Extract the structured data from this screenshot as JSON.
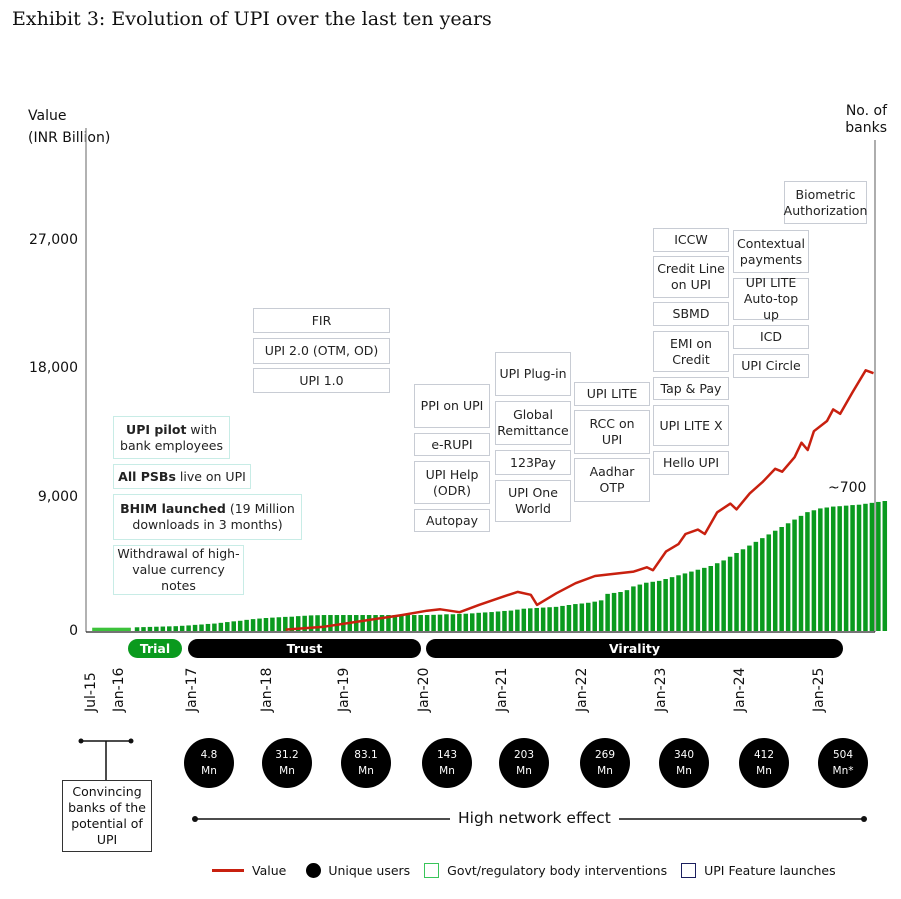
{
  "title": "Exhibit 3: Evolution of UPI over the last ten years",
  "colors": {
    "value_line": "#c8200f",
    "bank_bars": "#0a9a1e",
    "bank_bars_trial": "#3cc23a",
    "govt_box_border": "#39c55a",
    "feature_box_border": "#1b1f5e",
    "phase_trial": "#0a9a1e",
    "phase_dark": "#000000"
  },
  "chart_data": {
    "type": "bar+line",
    "title": "Exhibit 3: Evolution of UPI over the last ten years",
    "ylabel": "Value (INR Billion)",
    "y2label": "No. of banks",
    "ylim": [
      0,
      30000
    ],
    "yticks": [
      "0",
      "9,000",
      "18,000",
      "27,000"
    ],
    "ytick_values": [
      0,
      9000,
      18000,
      27000
    ],
    "xticks": [
      "Jul-15",
      "Jan-16",
      "Jan-17",
      "Jan-18",
      "Jan-19",
      "Jan-20",
      "Jan-21",
      "Jan-22",
      "Jan-23",
      "Jan-24",
      "Jan-25"
    ],
    "xtick_years": [
      2015.5,
      2016.0,
      2017.0,
      2018.0,
      2019.0,
      2020.0,
      2021.0,
      2022.0,
      2023.0,
      2024.0,
      2025.0
    ],
    "x_range_years": [
      2015.42,
      2025.62
    ],
    "grid": false,
    "legend_position": "bottom",
    "legend": [
      "Value",
      "Unique users",
      "Govt/regulatory body interventions",
      "UPI Feature launches"
    ],
    "series": [
      {
        "name": "Value",
        "type": "line",
        "unit": "INR Billion",
        "points": [
          [
            2018.0,
            100
          ],
          [
            2018.5,
            300
          ],
          [
            2019.0,
            700
          ],
          [
            2019.25,
            900
          ],
          [
            2019.5,
            1100
          ],
          [
            2019.83,
            1400
          ],
          [
            2020.0,
            1500
          ],
          [
            2020.25,
            1300
          ],
          [
            2020.5,
            1800
          ],
          [
            2020.83,
            2400
          ],
          [
            2021.0,
            2700
          ],
          [
            2021.17,
            2500
          ],
          [
            2021.25,
            1800
          ],
          [
            2021.5,
            2600
          ],
          [
            2021.75,
            3300
          ],
          [
            2022.0,
            3800
          ],
          [
            2022.17,
            3900
          ],
          [
            2022.5,
            4100
          ],
          [
            2022.67,
            4400
          ],
          [
            2022.75,
            4200
          ],
          [
            2022.92,
            5500
          ],
          [
            2023.08,
            6000
          ],
          [
            2023.17,
            6700
          ],
          [
            2023.33,
            7000
          ],
          [
            2023.42,
            6700
          ],
          [
            2023.58,
            8200
          ],
          [
            2023.75,
            8800
          ],
          [
            2023.83,
            8400
          ],
          [
            2024.0,
            9500
          ],
          [
            2024.17,
            10300
          ],
          [
            2024.33,
            11200
          ],
          [
            2024.42,
            11000
          ],
          [
            2024.58,
            12000
          ],
          [
            2024.67,
            13000
          ],
          [
            2024.75,
            12500
          ],
          [
            2024.83,
            13800
          ],
          [
            2025.0,
            14500
          ],
          [
            2025.08,
            15300
          ],
          [
            2025.17,
            15000
          ],
          [
            2025.33,
            16500
          ],
          [
            2025.5,
            18000
          ],
          [
            2025.6,
            17800
          ]
        ]
      },
      {
        "name": "No. of banks",
        "type": "bar",
        "unit": "banks",
        "approx_final": "~700",
        "trial_block": {
          "start": 2015.5,
          "end": 2016.0,
          "value": 20
        },
        "monthly_start": 2016.08,
        "monthly_values": [
          20,
          21,
          22,
          23,
          24,
          25,
          26,
          28,
          30,
          33,
          35,
          38,
          40,
          44,
          48,
          52,
          55,
          60,
          64,
          67,
          70,
          72,
          74,
          76,
          77,
          80,
          82,
          84,
          85,
          86,
          86,
          86,
          86,
          86,
          86,
          86,
          86,
          86,
          86,
          86,
          86,
          86,
          86,
          86,
          86,
          86,
          87,
          88,
          90,
          90,
          92,
          93,
          95,
          98,
          100,
          102,
          105,
          108,
          110,
          115,
          120,
          122,
          124,
          126,
          128,
          130,
          135,
          140,
          145,
          148,
          152,
          158,
          165,
          200,
          205,
          210,
          220,
          240,
          250,
          260,
          265,
          270,
          280,
          290,
          300,
          310,
          320,
          330,
          340,
          350,
          365,
          380,
          400,
          420,
          440,
          460,
          480,
          500,
          520,
          540,
          560,
          580,
          600,
          620,
          640,
          650,
          660,
          665,
          670,
          672,
          675,
          678,
          680,
          685,
          690,
          695,
          700
        ]
      }
    ],
    "phases": [
      {
        "label": "Trial",
        "start": 2016.0,
        "end": 2016.6
      },
      {
        "label": "Trust",
        "start": 2016.85,
        "end": 2019.95
      },
      {
        "label": "Virality",
        "start": 2020.0,
        "end": 2025.35
      }
    ],
    "unique_users": [
      {
        "x": "Jan-17",
        "value": "4.8",
        "unit": "Mn"
      },
      {
        "x": "Jan-18",
        "value": "31.2",
        "unit": "Mn"
      },
      {
        "x": "Jan-19",
        "value": "83.1",
        "unit": "Mn"
      },
      {
        "x": "Jan-20",
        "value": "143",
        "unit": "Mn"
      },
      {
        "x": "Jan-21",
        "value": "203",
        "unit": "Mn"
      },
      {
        "x": "Jan-22",
        "value": "269",
        "unit": "Mn"
      },
      {
        "x": "Jan-23",
        "value": "340",
        "unit": "Mn"
      },
      {
        "x": "Jan-24",
        "value": "412",
        "unit": "Mn"
      },
      {
        "x": "Jan-25",
        "value": "504",
        "unit": "Mn*"
      }
    ]
  },
  "axis": {
    "ylabel_line1": "Value",
    "ylabel_line2": "(INR Billion)",
    "y2label_line1": "No. of",
    "y2label_line2": "banks",
    "banks_annotation": "~700"
  },
  "govt_interventions": [
    {
      "bold": "UPI pilot",
      "rest": " with bank employees"
    },
    {
      "bold": "All PSBs",
      "rest": " live on UPI"
    },
    {
      "bold": "BHIM launched",
      "rest": " (19 Million downloads in 3 months)"
    },
    {
      "bold": "",
      "rest": "Withdrawal of high-value currency notes"
    }
  ],
  "feature_columns": [
    [
      "FIR",
      "UPI 2.0 (OTM, OD)",
      "UPI 1.0"
    ],
    [
      "PPI on UPI",
      "e-RUPI",
      "UPI Help (ODR)",
      "Autopay"
    ],
    [
      "UPI Plug-in",
      "Global Remittance",
      "123Pay",
      "UPI One World"
    ],
    [
      "UPI LITE",
      "RCC on UPI",
      "Aadhar OTP"
    ],
    [
      "ICCW",
      "Credit Line on UPI",
      "SBMD",
      "EMI on Credit",
      "Tap & Pay",
      "UPI LITE X",
      "Hello UPI"
    ],
    [
      "Contextual payments",
      "UPI LITE Auto-top up",
      "ICD",
      "UPI Circle"
    ],
    [
      "Biometric Authorization"
    ]
  ],
  "convincing_box": "Convincing banks of the potential of UPI",
  "network_effect_label": "High network effect",
  "legend": {
    "value": "Value",
    "users": "Unique users",
    "govt": "Govt/regulatory body interventions",
    "feature": "UPI Feature launches"
  }
}
